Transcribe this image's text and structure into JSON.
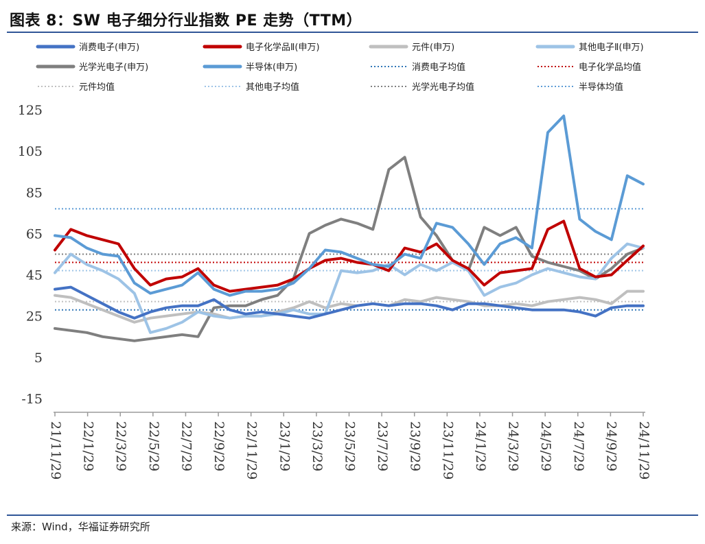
{
  "title": "图表 8：SW 电子细分行业指数 PE 走势（TTM）",
  "source": "来源：Wind，华福证券研究所",
  "chart_data": {
    "type": "line",
    "x_ticks": [
      "21/11/29",
      "22/1/29",
      "22/3/29",
      "22/5/29",
      "22/7/29",
      "22/9/29",
      "22/11/29",
      "23/1/29",
      "23/3/29",
      "23/5/29",
      "23/7/29",
      "23/9/29",
      "23/11/29",
      "24/1/29",
      "24/3/29",
      "24/5/29",
      "24/7/29",
      "24/9/29",
      "24/11/29"
    ],
    "y_ticks": [
      125,
      105,
      85,
      65,
      45,
      25,
      5,
      -15
    ],
    "ylim": [
      -15,
      125
    ],
    "grid": false,
    "legend_position": "top",
    "series": [
      {
        "name": "消费电子(申万)",
        "color": "#4472c4",
        "width": 4,
        "values": [
          38,
          39,
          35,
          31,
          27,
          24,
          27,
          29,
          30,
          30,
          33,
          28,
          26,
          27,
          26,
          25,
          24,
          26,
          28,
          30,
          31,
          30,
          31,
          31,
          30,
          28,
          31,
          31,
          30,
          29,
          28,
          28,
          28,
          27,
          25,
          29,
          30,
          30
        ]
      },
      {
        "name": "电子化学品Ⅱ(申万)",
        "color": "#c00000",
        "width": 4,
        "values": [
          57,
          67,
          64,
          62,
          60,
          48,
          40,
          43,
          44,
          48,
          40,
          37,
          38,
          39,
          40,
          43,
          48,
          52,
          53,
          51,
          50,
          47,
          58,
          56,
          60,
          52,
          48,
          40,
          46,
          47,
          48,
          67,
          71,
          48,
          44,
          45,
          52,
          59
        ]
      },
      {
        "name": "元件(申万)",
        "color": "#bfbfbf",
        "width": 4,
        "values": [
          35,
          34,
          31,
          28,
          25,
          22,
          24,
          25,
          26,
          27,
          26,
          24,
          25,
          25,
          27,
          29,
          32,
          29,
          31,
          30,
          31,
          30,
          33,
          32,
          34,
          33,
          32,
          30,
          30,
          31,
          30,
          32,
          33,
          34,
          33,
          31,
          37,
          37
        ]
      },
      {
        "name": "其他电子Ⅱ(申万)",
        "color": "#9dc3e6",
        "width": 4,
        "values": [
          46,
          55,
          50,
          47,
          43,
          36,
          17,
          19,
          22,
          27,
          25,
          24,
          25,
          25,
          26,
          28,
          26,
          26,
          47,
          46,
          47,
          50,
          45,
          50,
          47,
          51,
          47,
          35,
          39,
          41,
          45,
          48,
          46,
          44,
          43,
          53,
          60,
          58
        ]
      },
      {
        "name": "光学光电子(申万)",
        "color": "#7f7f7f",
        "width": 4,
        "values": [
          19,
          18,
          17,
          15,
          14,
          13,
          14,
          15,
          16,
          15,
          29,
          30,
          30,
          33,
          35,
          43,
          65,
          69,
          72,
          70,
          67,
          96,
          102,
          73,
          64,
          52,
          47,
          68,
          64,
          68,
          54,
          51,
          49,
          47,
          43,
          48,
          55,
          58
        ]
      },
      {
        "name": "半导体(申万)",
        "color": "#5b9bd5",
        "width": 4,
        "values": [
          64,
          63,
          58,
          55,
          54,
          41,
          36,
          38,
          40,
          46,
          38,
          35,
          37,
          37,
          38,
          41,
          48,
          57,
          56,
          53,
          50,
          49,
          55,
          53,
          70,
          68,
          60,
          50,
          60,
          63,
          58,
          114,
          122,
          72,
          66,
          62,
          93,
          89
        ]
      },
      {
        "name": "消费电子均值",
        "color": "#2e75b6",
        "dotted": true,
        "values": [
          28
        ]
      },
      {
        "name": "电子化学品均值",
        "color": "#c00000",
        "dotted": true,
        "values": [
          51
        ]
      },
      {
        "name": "元件均值",
        "color": "#bfbfbf",
        "dotted": true,
        "values": [
          32
        ]
      },
      {
        "name": "其他电子均值",
        "color": "#9dc3e6",
        "dotted": true,
        "values": [
          47
        ]
      },
      {
        "name": "光学光电子均值",
        "color": "#7f7f7f",
        "dotted": true,
        "values": [
          55
        ]
      },
      {
        "name": "半导体均值",
        "color": "#5b9bd5",
        "dotted": true,
        "values": [
          77
        ]
      }
    ]
  }
}
